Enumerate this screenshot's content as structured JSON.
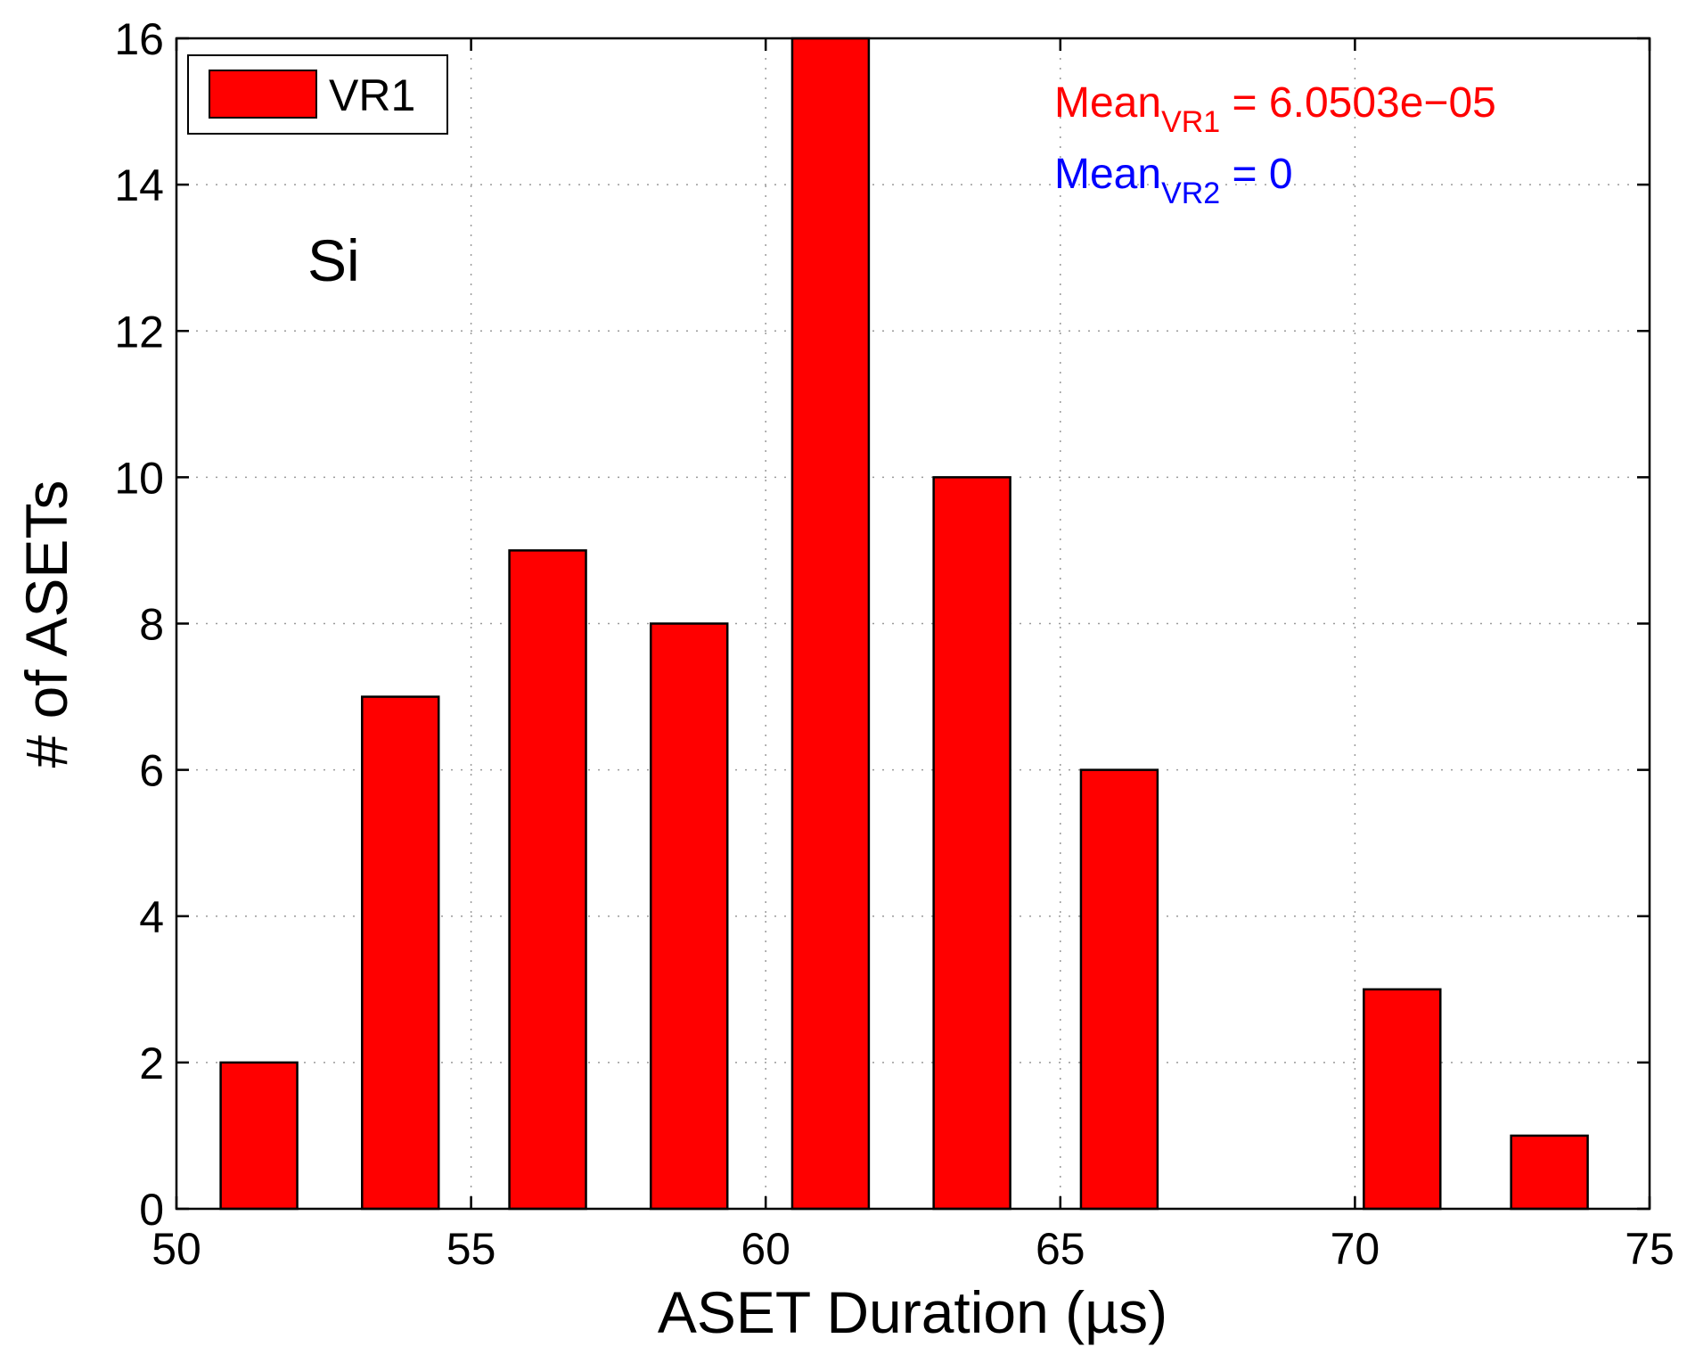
{
  "chart_data": {
    "type": "bar",
    "title": "",
    "xlabel": "ASET Duration (µs)",
    "ylabel": "# of ASETs",
    "xlim": [
      50,
      75
    ],
    "ylim": [
      0,
      16
    ],
    "xticks": [
      50,
      55,
      60,
      65,
      70,
      75
    ],
    "yticks": [
      0,
      2,
      4,
      6,
      8,
      10,
      12,
      14,
      16
    ],
    "grid": true,
    "bar_width": 1.3,
    "series": [
      {
        "name": "VR1",
        "color": "#ff0000",
        "x": [
          51.4,
          53.8,
          56.3,
          58.7,
          61.1,
          63.5,
          66.0,
          70.8,
          73.3
        ],
        "values": [
          2,
          7,
          9,
          8,
          16,
          10,
          6,
          3,
          1
        ]
      }
    ],
    "legend": {
      "placement": "top-left",
      "entries": [
        "VR1"
      ]
    },
    "annotations": {
      "material_label": "Si",
      "mean_vr1": {
        "main": "Mean",
        "sub": "VR1",
        "value": " = 6.0503e−05",
        "color": "#ff0000"
      },
      "mean_vr2": {
        "main": "Mean",
        "sub": "VR2",
        "value": " = 0",
        "color": "#0000ff"
      }
    }
  }
}
